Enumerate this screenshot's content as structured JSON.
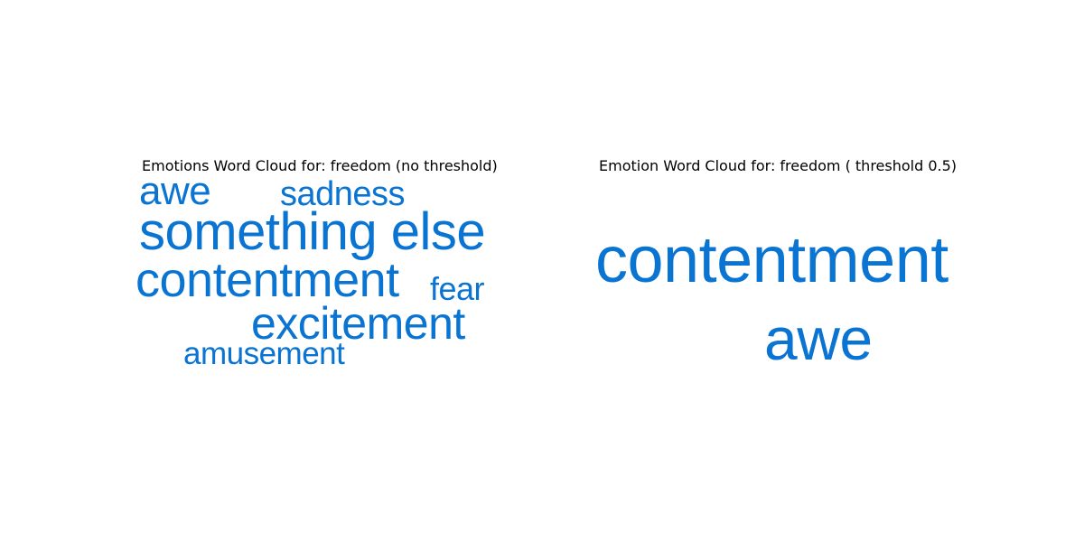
{
  "chart_data": [
    {
      "type": "wordcloud",
      "title": "Emotions Word Cloud for: freedom (no threshold)",
      "color": "#0a74d3",
      "words": [
        {
          "text": "awe"
        },
        {
          "text": "sadness"
        },
        {
          "text": "something else"
        },
        {
          "text": "contentment"
        },
        {
          "text": "fear"
        },
        {
          "text": "excitement"
        },
        {
          "text": "amusement"
        }
      ]
    },
    {
      "type": "wordcloud",
      "title": "Emotion Word Cloud for: freedom ( threshold 0.5)",
      "color": "#0a74d3",
      "words": [
        {
          "text": "contentment"
        },
        {
          "text": "awe"
        }
      ]
    }
  ]
}
